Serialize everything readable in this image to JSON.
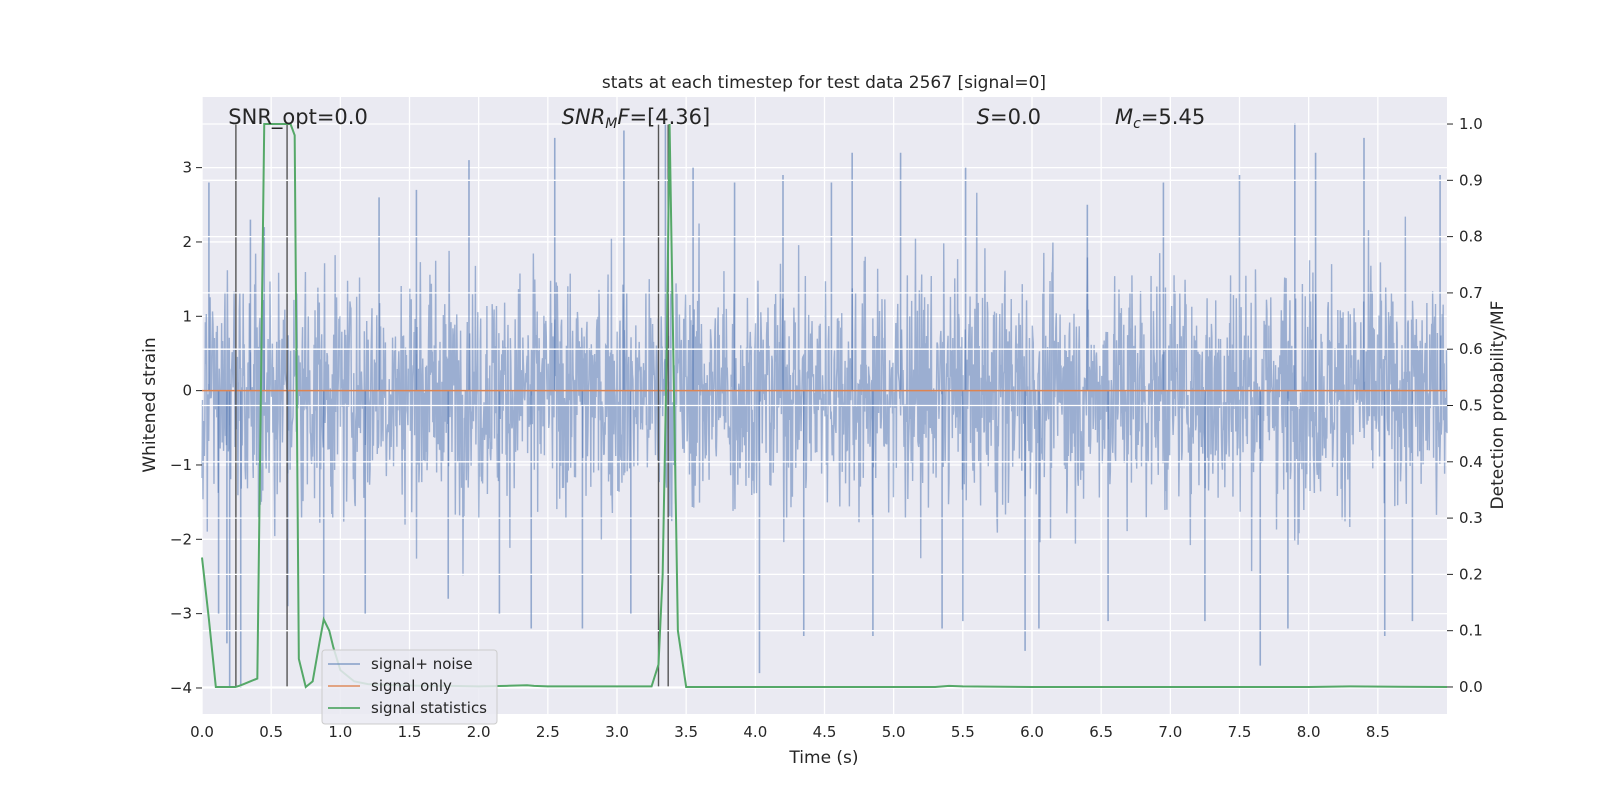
{
  "chart_data": {
    "type": "line",
    "title": "stats at each timestep for test data 2567 [signal=0]",
    "xlabel": "Time (s)",
    "ylabel": "Whitened strain",
    "y2label": "Detection probability/MF",
    "xlim": [
      0.0,
      9.0
    ],
    "ylim": [
      -4.35,
      3.95
    ],
    "y2lim": [
      -0.048,
      1.048
    ],
    "xticks": [
      "0.0",
      "0.5",
      "1.0",
      "1.5",
      "2.0",
      "2.5",
      "3.0",
      "3.5",
      "4.0",
      "4.5",
      "5.0",
      "5.5",
      "6.0",
      "6.5",
      "7.0",
      "7.5",
      "8.0",
      "8.5"
    ],
    "yticks": [
      "-4",
      "-3",
      "-2",
      "-1",
      "0",
      "1",
      "2",
      "3"
    ],
    "y2ticks": [
      "0.0",
      "0.1",
      "0.2",
      "0.3",
      "0.4",
      "0.5",
      "0.6",
      "0.7",
      "0.8",
      "0.9",
      "1.0"
    ],
    "grid": true,
    "legend_position": "lower-left",
    "annotations": [
      {
        "text": "SNR_opt=0.0",
        "x": 0.19
      },
      {
        "text": "SNR_MF=[4.36]",
        "x": 2.6
      },
      {
        "text": "S=0.0",
        "x": 5.6
      },
      {
        "text": "M_c=5.45",
        "x": 6.6
      }
    ],
    "vertical_lines": [
      0.245,
      0.615,
      3.3,
      3.37
    ],
    "series": [
      {
        "name": "signal+ noise",
        "axis": "left",
        "color": "#4c72b0",
        "kind": "whitened noise, approx. range -4 to 3.6",
        "peaks": [
          [
            0.05,
            2.8
          ],
          [
            0.12,
            -3.0
          ],
          [
            0.18,
            -3.4
          ],
          [
            0.2,
            -4.0
          ],
          [
            0.28,
            -4.0
          ],
          [
            0.35,
            2.3
          ],
          [
            0.45,
            2.2
          ],
          [
            0.62,
            -2.9
          ],
          [
            0.88,
            -3.1
          ],
          [
            1.18,
            -3.0
          ],
          [
            1.28,
            2.6
          ],
          [
            1.55,
            2.7
          ],
          [
            1.78,
            -2.8
          ],
          [
            1.93,
            3.1
          ],
          [
            2.15,
            -3.0
          ],
          [
            2.38,
            -3.2
          ],
          [
            2.55,
            3.4
          ],
          [
            2.75,
            -3.2
          ],
          [
            3.05,
            3.5
          ],
          [
            3.1,
            -3.0
          ],
          [
            3.35,
            3.6
          ],
          [
            3.55,
            3.0
          ],
          [
            3.85,
            2.8
          ],
          [
            4.03,
            -3.8
          ],
          [
            4.2,
            2.9
          ],
          [
            4.35,
            -3.3
          ],
          [
            4.55,
            2.8
          ],
          [
            4.7,
            3.2
          ],
          [
            4.85,
            -3.3
          ],
          [
            5.05,
            3.2
          ],
          [
            5.35,
            -3.2
          ],
          [
            5.52,
            3.0
          ],
          [
            5.5,
            -3.1
          ],
          [
            5.95,
            -3.5
          ],
          [
            6.05,
            -3.2
          ],
          [
            6.4,
            2.5
          ],
          [
            6.55,
            -3.1
          ],
          [
            6.95,
            2.8
          ],
          [
            7.25,
            -3.1
          ],
          [
            7.5,
            2.9
          ],
          [
            7.65,
            -3.7
          ],
          [
            7.85,
            -3.2
          ],
          [
            7.9,
            3.6
          ],
          [
            8.05,
            3.2
          ],
          [
            8.4,
            3.4
          ],
          [
            8.55,
            -3.3
          ],
          [
            8.75,
            -3.1
          ],
          [
            8.95,
            2.9
          ]
        ]
      },
      {
        "name": "signal only",
        "axis": "left",
        "color": "#dd8452",
        "x": [
          0.0,
          9.0
        ],
        "y": [
          0.0,
          0.0
        ]
      },
      {
        "name": "signal statistics",
        "axis": "right",
        "color": "#55a868",
        "x": [
          0.0,
          0.05,
          0.1,
          0.15,
          0.2,
          0.24,
          0.27,
          0.3,
          0.35,
          0.4,
          0.45,
          0.5,
          0.55,
          0.6,
          0.62,
          0.64,
          0.67,
          0.7,
          0.75,
          0.8,
          0.85,
          0.88,
          0.92,
          0.95,
          1.0,
          1.05,
          1.1,
          1.2,
          1.4,
          1.6,
          1.8,
          2.0,
          2.2,
          2.35,
          2.4,
          2.5,
          2.7,
          2.9,
          3.1,
          3.25,
          3.3,
          3.33,
          3.36,
          3.38,
          3.41,
          3.44,
          3.5,
          4.0,
          5.0,
          5.3,
          5.4,
          5.5,
          6.0,
          7.0,
          8.0,
          8.3,
          9.0
        ],
        "y": [
          0.23,
          0.12,
          0.0,
          0.0,
          0.0,
          0.0,
          0.002,
          0.005,
          0.01,
          0.015,
          1.0,
          1.0,
          1.0,
          1.0,
          1.0,
          1.0,
          0.98,
          0.05,
          0.0,
          0.01,
          0.08,
          0.12,
          0.1,
          0.07,
          0.03,
          0.02,
          0.01,
          0.005,
          0.003,
          0.002,
          0.002,
          0.001,
          0.002,
          0.003,
          0.002,
          0.001,
          0.001,
          0.001,
          0.001,
          0.001,
          0.04,
          0.2,
          0.6,
          1.0,
          0.55,
          0.1,
          0.0,
          0.0,
          0.0,
          0.0,
          0.002,
          0.001,
          0.0,
          0.0,
          0.0,
          0.001,
          0.0
        ]
      }
    ],
    "legend": [
      "signal+ noise",
      "signal only",
      "signal statistics"
    ]
  }
}
